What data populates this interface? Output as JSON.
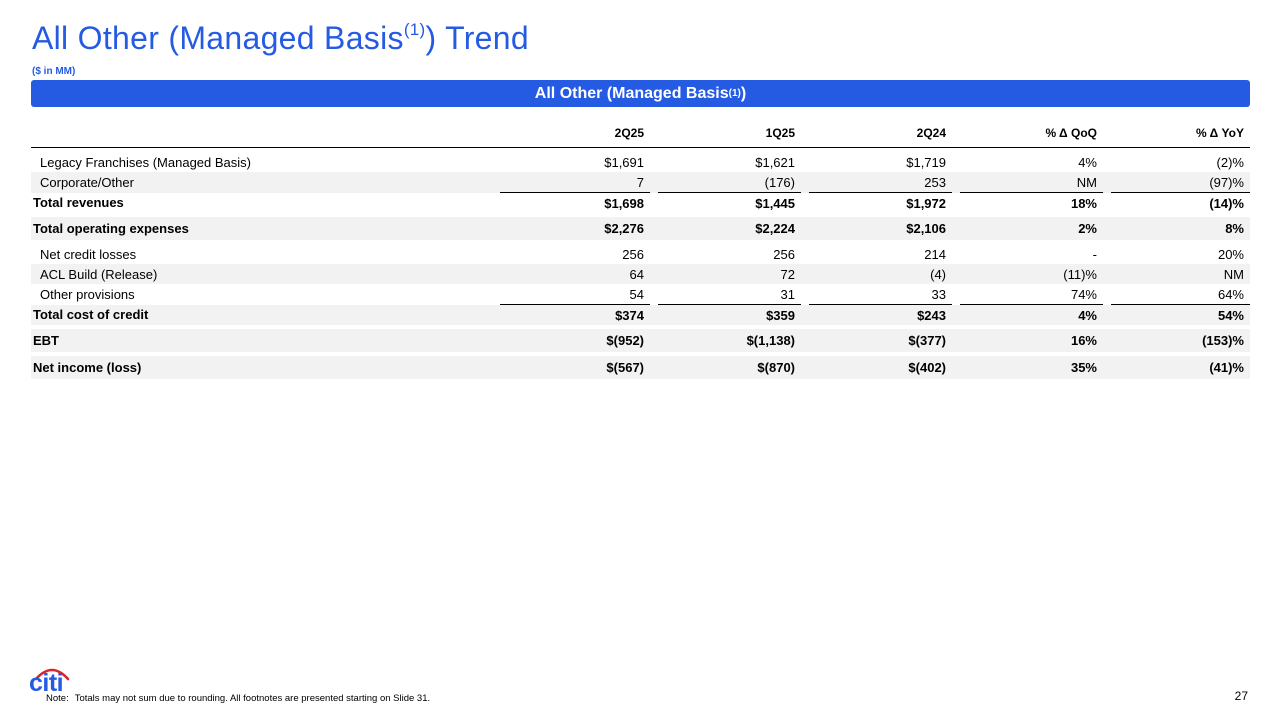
{
  "title": {
    "main": "All Other (Managed Basis",
    "sup": "(1)",
    "tail": ") Trend"
  },
  "units": "($ in MM)",
  "banner": {
    "main": "All Other (Managed Basis",
    "sup": "(1)",
    "tail": ")"
  },
  "columns": [
    "2Q25",
    "1Q25",
    "2Q24",
    "% Δ QoQ",
    "% Δ YoY"
  ],
  "rows": {
    "legacy": {
      "label": "Legacy Franchises (Managed Basis)",
      "v": [
        "$1,691",
        "$1,621",
        "$1,719",
        "4%",
        "(2)%"
      ]
    },
    "corporate": {
      "label": "Corporate/Other",
      "v": [
        "7",
        "(176)",
        "253",
        "NM",
        "(97)%"
      ]
    },
    "total_revenues": {
      "label": "Total revenues",
      "v": [
        "$1,698",
        "$1,445",
        "$1,972",
        "18%",
        "(14)%"
      ]
    },
    "total_opex": {
      "label": "Total operating expenses",
      "v": [
        "$2,276",
        "$2,224",
        "$2,106",
        "2%",
        "8%"
      ]
    },
    "ncl": {
      "label": "Net credit losses",
      "v": [
        "256",
        "256",
        "214",
        "-",
        "20%"
      ]
    },
    "acl": {
      "label": "ACL Build (Release)",
      "v": [
        "64",
        "72",
        "(4)",
        "(11)%",
        "NM"
      ]
    },
    "other_prov": {
      "label": "Other provisions",
      "v": [
        "54",
        "31",
        "33",
        "74%",
        "64%"
      ]
    },
    "total_credit": {
      "label": "Total cost of credit",
      "v": [
        "$374",
        "$359",
        "$243",
        "4%",
        "54%"
      ]
    },
    "ebt": {
      "label": "EBT",
      "v": [
        "$(952)",
        "$(1,138)",
        "$(377)",
        "16%",
        "(153)%"
      ]
    },
    "net_income": {
      "label": "Net income (loss)",
      "v": [
        "$(567)",
        "$(870)",
        "$(402)",
        "35%",
        "(41)%"
      ]
    }
  },
  "footer": {
    "note_lead": "Note:",
    "note_text": "Totals may not sum due to rounding. All footnotes are presented starting on Slide 31.",
    "page": "27",
    "logo": "citi"
  },
  "colors": {
    "accent": "#255be3",
    "logo_arc": "#d7262e",
    "shade": "#f2f2f2"
  }
}
